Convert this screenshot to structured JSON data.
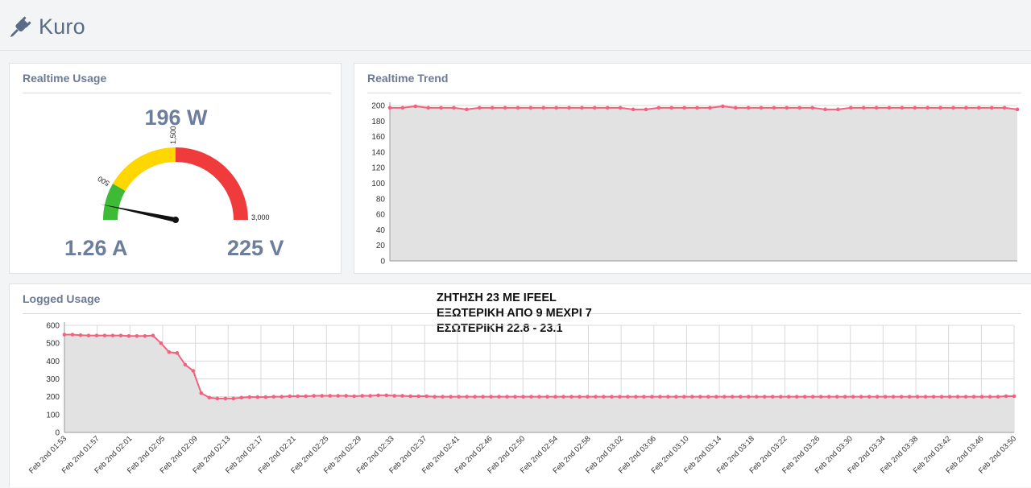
{
  "app": {
    "title": "Kuro",
    "icon": "plug-icon"
  },
  "realtime_usage": {
    "title": "Realtime Usage",
    "power": "196 W",
    "current": "1.26 A",
    "voltage": "225 V",
    "gauge": {
      "min": 0,
      "max": 3000,
      "value": 196,
      "bands": [
        {
          "from": 0,
          "to": 500,
          "color": "#3dbb37"
        },
        {
          "from": 500,
          "to": 1500,
          "color": "#ffd700"
        },
        {
          "from": 1500,
          "to": 3000,
          "color": "#ef3b3b"
        }
      ],
      "ticks": [
        {
          "value": 500,
          "label": "500"
        },
        {
          "value": 1500,
          "label": "1,500"
        },
        {
          "value": 3000,
          "label": "3,000"
        }
      ]
    }
  },
  "realtime_trend": {
    "title": "Realtime Trend",
    "chart_data": {
      "type": "area",
      "ylim": [
        0,
        200
      ],
      "yticks": [
        0,
        20,
        40,
        60,
        80,
        100,
        120,
        140,
        160,
        180,
        200
      ],
      "values": [
        197,
        197,
        199,
        197,
        197,
        197,
        195,
        197,
        197,
        197,
        197,
        197,
        197,
        197,
        197,
        197,
        197,
        197,
        197,
        195,
        195,
        197,
        197,
        197,
        197,
        197,
        199,
        197,
        197,
        197,
        197,
        197,
        197,
        197,
        195,
        195,
        197,
        197,
        197,
        197,
        197,
        197,
        197,
        197,
        197,
        197,
        197,
        197,
        197,
        195
      ],
      "color": "#f0627f"
    }
  },
  "logged_usage": {
    "title": "Logged Usage",
    "note": [
      "ΖΗΤΗΣΗ 23 ΜΕ IFEEL",
      "ΕΞΩΤΕΡΙΚΗ ΑΠΟ 9 ΜΕΧΡΙ 7",
      "ΕΣΩΤΕΡΙΚΗ 22.8 - 23.1"
    ],
    "chart_data": {
      "type": "area",
      "ylim": [
        0,
        600
      ],
      "yticks": [
        0,
        100,
        200,
        300,
        400,
        500,
        600
      ],
      "x_labels": [
        "Feb 2nd 01:53",
        "Feb 2nd 01:57",
        "Feb 2nd 02:01",
        "Feb 2nd 02:05",
        "Feb 2nd 02:09",
        "Feb 2nd 02:13",
        "Feb 2nd 02:17",
        "Feb 2nd 02:21",
        "Feb 2nd 02:25",
        "Feb 2nd 02:29",
        "Feb 2nd 02:33",
        "Feb 2nd 02:37",
        "Feb 2nd 02:41",
        "Feb 2nd 02:46",
        "Feb 2nd 02:50",
        "Feb 2nd 02:54",
        "Feb 2nd 02:58",
        "Feb 2nd 03:02",
        "Feb 2nd 03:06",
        "Feb 2nd 03:10",
        "Feb 2nd 03:14",
        "Feb 2nd 03:18",
        "Feb 2nd 03:22",
        "Feb 2nd 03:26",
        "Feb 2nd 03:30",
        "Feb 2nd 03:34",
        "Feb 2nd 03:38",
        "Feb 2nd 03:42",
        "Feb 2nd 03:46",
        "Feb 2nd 03:50"
      ],
      "values": [
        548,
        548,
        545,
        543,
        543,
        543,
        543,
        543,
        540,
        540,
        540,
        543,
        500,
        450,
        445,
        380,
        345,
        220,
        195,
        190,
        190,
        190,
        195,
        198,
        198,
        198,
        200,
        200,
        203,
        203,
        203,
        205,
        205,
        205,
        205,
        205,
        203,
        205,
        205,
        208,
        208,
        205,
        205,
        203,
        203,
        203,
        200,
        200,
        200,
        200,
        200,
        200,
        200,
        200,
        200,
        200,
        200,
        200,
        200,
        200,
        200,
        200,
        200,
        200,
        200,
        200,
        200,
        200,
        200,
        200,
        200,
        200,
        200,
        200,
        200,
        200,
        200,
        200,
        200,
        200,
        200,
        200,
        200,
        200,
        200,
        200,
        200,
        200,
        200,
        200,
        200,
        200,
        200,
        200,
        200,
        200,
        200,
        200,
        200,
        200,
        200,
        200,
        200,
        200,
        200,
        200,
        200,
        200,
        200,
        200,
        200,
        200,
        200,
        200,
        200,
        200,
        200,
        203,
        203
      ],
      "color": "#f0627f"
    }
  }
}
